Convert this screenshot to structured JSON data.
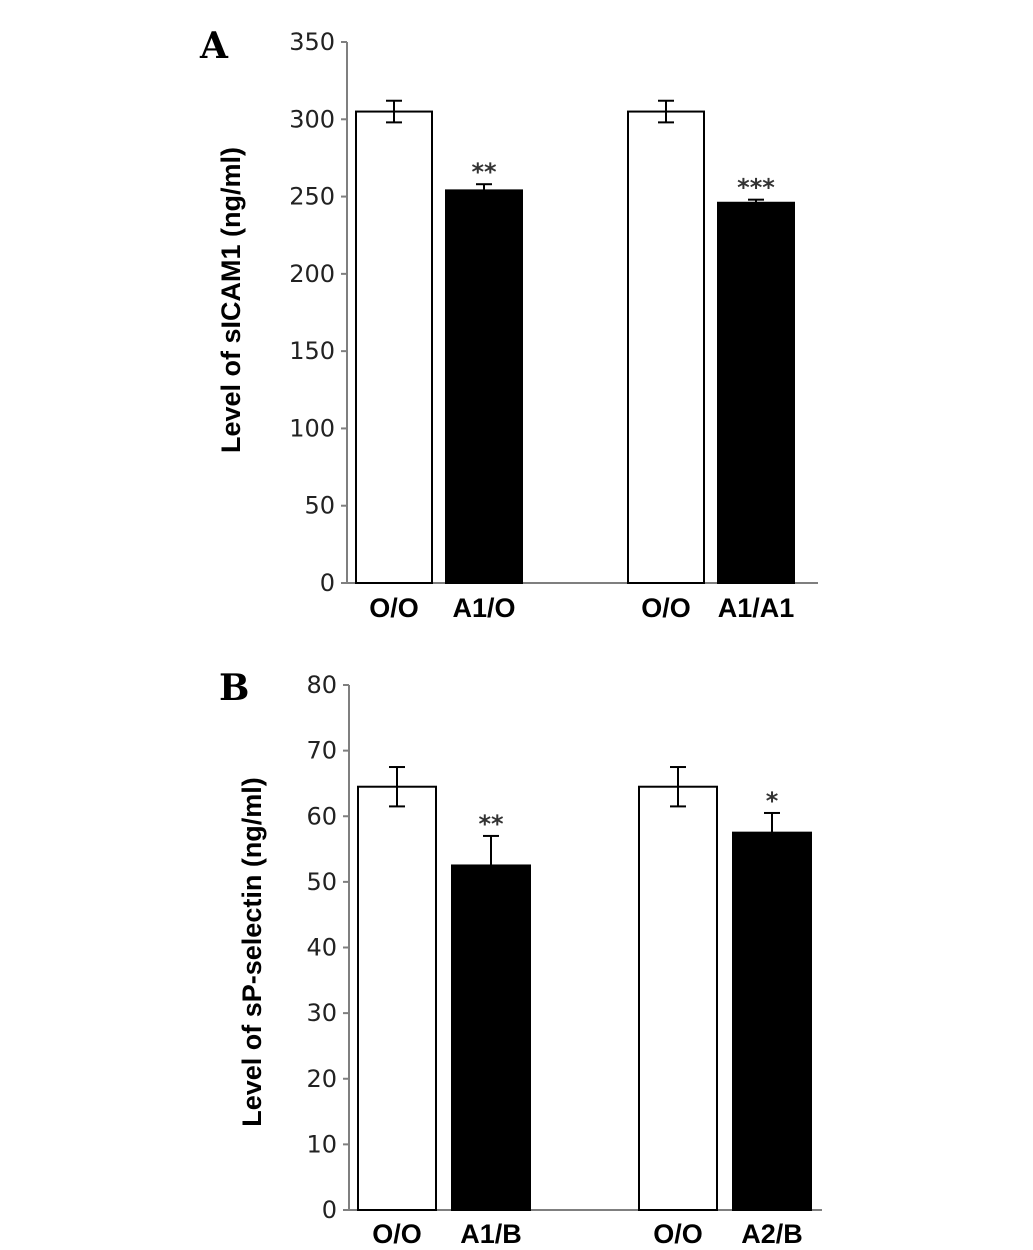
{
  "chart_data": [
    {
      "type": "bar",
      "panel": "A",
      "ylabel": "Level of sICAM1 (ng/ml)",
      "ylim": [
        0,
        350
      ],
      "yticks": [
        0,
        50,
        100,
        150,
        200,
        250,
        300,
        350
      ],
      "grid": false,
      "bars": [
        {
          "category": "O/O",
          "value": 305,
          "error": 7,
          "fill": "white",
          "sig": ""
        },
        {
          "category": "A1/O",
          "value": 254,
          "error": 4,
          "fill": "black",
          "sig": "**"
        },
        {
          "category": "O/O",
          "value": 305,
          "error": 7,
          "fill": "white",
          "sig": ""
        },
        {
          "category": "A1/A1",
          "value": 246,
          "error": 2,
          "fill": "black",
          "sig": "***"
        }
      ]
    },
    {
      "type": "bar",
      "panel": "B",
      "ylabel": "Level of sP-selectin (ng/ml)",
      "ylim": [
        0,
        80
      ],
      "yticks": [
        0,
        10,
        20,
        30,
        40,
        50,
        60,
        70,
        80
      ],
      "grid": false,
      "bars": [
        {
          "category": "O/O",
          "value": 64.5,
          "error": 3,
          "fill": "white",
          "sig": ""
        },
        {
          "category": "A1/B",
          "value": 52.5,
          "error": 4.5,
          "fill": "black",
          "sig": "**"
        },
        {
          "category": "O/O",
          "value": 64.5,
          "error": 3,
          "fill": "white",
          "sig": ""
        },
        {
          "category": "A2/B",
          "value": 57.5,
          "error": 3,
          "fill": "black",
          "sig": "*"
        }
      ]
    }
  ],
  "colors": {
    "white_bar": "#ffffff",
    "black_bar": "#000000",
    "axis": "#7f7f7f"
  }
}
